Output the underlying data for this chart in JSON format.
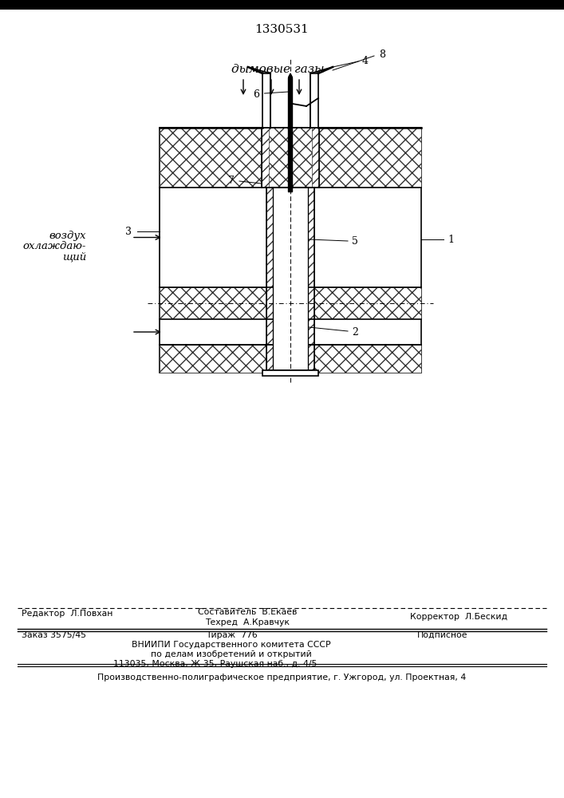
{
  "patent_number": "1330531",
  "title_text": "дымовые газы",
  "air_label_line1": "воздух",
  "air_label_line2": "охлаждаю-",
  "air_label_line3": "щий",
  "bottom_editor": "Редактор  Л.Повхан",
  "bottom_line1": "Составитель  В.Екаев",
  "bottom_line2": "Техред  А.Кравчук",
  "bottom_corrector": "Корректор  Л.Бескид",
  "bottom_order": "Заказ 3575/45",
  "bottom_tirazh": "Тираж  776",
  "bottom_podpisnoe": "Подписное",
  "bottom_vniip1": "ВНИИПИ Государственного комитета СССР",
  "bottom_vniip2": "по делам изобретений и открытий",
  "bottom_vniip3": "113035, Москва, Ж-35, Раушская наб., д. 4/5",
  "bottom_prod": "Производственно-полиграфическое предприятие, г. Ужгород, ул. Проектная, 4",
  "bg_color": "#ffffff"
}
